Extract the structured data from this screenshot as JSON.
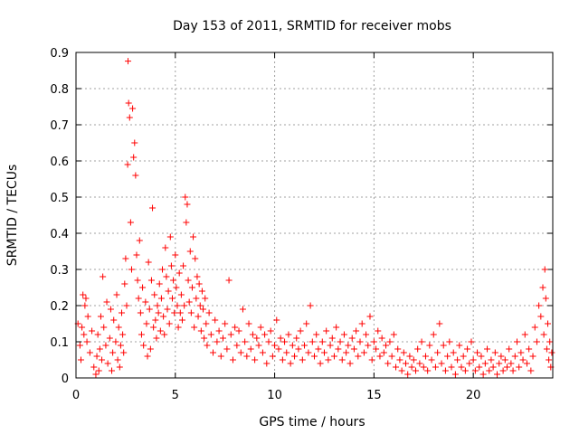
{
  "chart_data": {
    "type": "scatter",
    "title": "Day 153 of 2011, SRMTID for receiver mobs",
    "xlabel": "GPS time / hours",
    "ylabel": "SRMTID / TECUs",
    "xlim": [
      0,
      24
    ],
    "ylim": [
      0,
      0.9
    ],
    "xticks": [
      0,
      5,
      10,
      15,
      20
    ],
    "xtick_labels": [
      "0",
      "5",
      "10",
      "15",
      "20"
    ],
    "yticks": [
      0,
      0.1,
      0.2,
      0.3,
      0.4,
      0.5,
      0.6,
      0.7,
      0.8,
      0.9
    ],
    "ytick_labels": [
      "0",
      "0.1",
      "0.2",
      "0.3",
      "0.4",
      "0.5",
      "0.6",
      "0.7",
      "0.8",
      "0.9"
    ],
    "grid": true,
    "marker": "+",
    "color": "#ff0000",
    "series": [
      {
        "name": "mobs",
        "points": [
          [
            0.1,
            0.15
          ],
          [
            0.2,
            0.09
          ],
          [
            0.25,
            0.05
          ],
          [
            0.3,
            0.14
          ],
          [
            0.35,
            0.23
          ],
          [
            0.4,
            0.12
          ],
          [
            0.45,
            0.2
          ],
          [
            0.5,
            0.22
          ],
          [
            0.55,
            0.1
          ],
          [
            0.6,
            0.17
          ],
          [
            0.7,
            0.07
          ],
          [
            0.8,
            0.13
          ],
          [
            0.9,
            0.03
          ],
          [
            1.0,
            0.01
          ],
          [
            1.05,
            0.06
          ],
          [
            1.1,
            0.12
          ],
          [
            1.15,
            0.02
          ],
          [
            1.2,
            0.08
          ],
          [
            1.25,
            0.17
          ],
          [
            1.3,
            0.05
          ],
          [
            1.35,
            0.28
          ],
          [
            1.4,
            0.14
          ],
          [
            1.5,
            0.09
          ],
          [
            1.55,
            0.21
          ],
          [
            1.6,
            0.04
          ],
          [
            1.7,
            0.11
          ],
          [
            1.75,
            0.19
          ],
          [
            1.8,
            0.02
          ],
          [
            1.85,
            0.07
          ],
          [
            1.9,
            0.16
          ],
          [
            2.0,
            0.1
          ],
          [
            2.05,
            0.23
          ],
          [
            2.1,
            0.05
          ],
          [
            2.15,
            0.14
          ],
          [
            2.2,
            0.03
          ],
          [
            2.25,
            0.09
          ],
          [
            2.3,
            0.18
          ],
          [
            2.35,
            0.12
          ],
          [
            2.4,
            0.07
          ],
          [
            2.45,
            0.26
          ],
          [
            2.5,
            0.33
          ],
          [
            2.55,
            0.2
          ],
          [
            2.6,
            0.59
          ],
          [
            2.62,
            0.876
          ],
          [
            2.65,
            0.76
          ],
          [
            2.7,
            0.72
          ],
          [
            2.75,
            0.43
          ],
          [
            2.8,
            0.3
          ],
          [
            2.85,
            0.745
          ],
          [
            2.9,
            0.61
          ],
          [
            2.95,
            0.65
          ],
          [
            3.0,
            0.56
          ],
          [
            3.05,
            0.34
          ],
          [
            3.1,
            0.27
          ],
          [
            3.15,
            0.22
          ],
          [
            3.2,
            0.38
          ],
          [
            3.25,
            0.18
          ],
          [
            3.3,
            0.12
          ],
          [
            3.35,
            0.25
          ],
          [
            3.4,
            0.09
          ],
          [
            3.5,
            0.21
          ],
          [
            3.55,
            0.15
          ],
          [
            3.6,
            0.06
          ],
          [
            3.65,
            0.32
          ],
          [
            3.7,
            0.19
          ],
          [
            3.75,
            0.08
          ],
          [
            3.8,
            0.27
          ],
          [
            3.85,
            0.47
          ],
          [
            3.9,
            0.14
          ],
          [
            3.95,
            0.23
          ],
          [
            4.0,
            0.16
          ],
          [
            4.05,
            0.11
          ],
          [
            4.1,
            0.2
          ],
          [
            4.15,
            0.18
          ],
          [
            4.2,
            0.26
          ],
          [
            4.25,
            0.13
          ],
          [
            4.3,
            0.22
          ],
          [
            4.35,
            0.3
          ],
          [
            4.4,
            0.17
          ],
          [
            4.45,
            0.12
          ],
          [
            4.5,
            0.36
          ],
          [
            4.55,
            0.28
          ],
          [
            4.6,
            0.19
          ],
          [
            4.65,
            0.24
          ],
          [
            4.7,
            0.15
          ],
          [
            4.75,
            0.39
          ],
          [
            4.8,
            0.31
          ],
          [
            4.85,
            0.22
          ],
          [
            4.9,
            0.27
          ],
          [
            4.95,
            0.18
          ],
          [
            5.0,
            0.34
          ],
          [
            5.05,
            0.25
          ],
          [
            5.1,
            0.2
          ],
          [
            5.15,
            0.14
          ],
          [
            5.2,
            0.29
          ],
          [
            5.25,
            0.18
          ],
          [
            5.3,
            0.23
          ],
          [
            5.35,
            0.16
          ],
          [
            5.4,
            0.31
          ],
          [
            5.45,
            0.2
          ],
          [
            5.5,
            0.5
          ],
          [
            5.55,
            0.43
          ],
          [
            5.6,
            0.48
          ],
          [
            5.65,
            0.27
          ],
          [
            5.7,
            0.21
          ],
          [
            5.75,
            0.35
          ],
          [
            5.8,
            0.18
          ],
          [
            5.85,
            0.25
          ],
          [
            5.9,
            0.39
          ],
          [
            5.95,
            0.14
          ],
          [
            6.0,
            0.33
          ],
          [
            6.05,
            0.22
          ],
          [
            6.1,
            0.28
          ],
          [
            6.15,
            0.17
          ],
          [
            6.2,
            0.26
          ],
          [
            6.25,
            0.2
          ],
          [
            6.3,
            0.13
          ],
          [
            6.35,
            0.24
          ],
          [
            6.4,
            0.19
          ],
          [
            6.45,
            0.11
          ],
          [
            6.5,
            0.22
          ],
          [
            6.55,
            0.15
          ],
          [
            6.6,
            0.09
          ],
          [
            6.7,
            0.18
          ],
          [
            6.8,
            0.12
          ],
          [
            6.9,
            0.07
          ],
          [
            7.0,
            0.16
          ],
          [
            7.1,
            0.1
          ],
          [
            7.2,
            0.13
          ],
          [
            7.3,
            0.06
          ],
          [
            7.4,
            0.11
          ],
          [
            7.5,
            0.15
          ],
          [
            7.6,
            0.08
          ],
          [
            7.7,
            0.27
          ],
          [
            7.8,
            0.12
          ],
          [
            7.9,
            0.05
          ],
          [
            8.0,
            0.14
          ],
          [
            8.1,
            0.09
          ],
          [
            8.2,
            0.13
          ],
          [
            8.3,
            0.07
          ],
          [
            8.4,
            0.19
          ],
          [
            8.5,
            0.1
          ],
          [
            8.6,
            0.06
          ],
          [
            8.7,
            0.15
          ],
          [
            8.8,
            0.08
          ],
          [
            8.9,
            0.12
          ],
          [
            9.0,
            0.05
          ],
          [
            9.1,
            0.11
          ],
          [
            9.2,
            0.09
          ],
          [
            9.3,
            0.14
          ],
          [
            9.4,
            0.07
          ],
          [
            9.5,
            0.12
          ],
          [
            9.6,
            0.04
          ],
          [
            9.7,
            0.1
          ],
          [
            9.8,
            0.13
          ],
          [
            9.9,
            0.06
          ],
          [
            10.0,
            0.09
          ],
          [
            10.1,
            0.16
          ],
          [
            10.2,
            0.08
          ],
          [
            10.3,
            0.11
          ],
          [
            10.4,
            0.05
          ],
          [
            10.5,
            0.1
          ],
          [
            10.6,
            0.07
          ],
          [
            10.7,
            0.12
          ],
          [
            10.8,
            0.04
          ],
          [
            10.9,
            0.09
          ],
          [
            11.0,
            0.06
          ],
          [
            11.1,
            0.11
          ],
          [
            11.2,
            0.08
          ],
          [
            11.3,
            0.13
          ],
          [
            11.4,
            0.05
          ],
          [
            11.5,
            0.09
          ],
          [
            11.6,
            0.15
          ],
          [
            11.7,
            0.07
          ],
          [
            11.8,
            0.2
          ],
          [
            11.9,
            0.1
          ],
          [
            12.0,
            0.06
          ],
          [
            12.1,
            0.12
          ],
          [
            12.2,
            0.08
          ],
          [
            12.3,
            0.04
          ],
          [
            12.4,
            0.1
          ],
          [
            12.5,
            0.07
          ],
          [
            12.6,
            0.13
          ],
          [
            12.7,
            0.05
          ],
          [
            12.8,
            0.09
          ],
          [
            12.9,
            0.11
          ],
          [
            13.0,
            0.06
          ],
          [
            13.1,
            0.14
          ],
          [
            13.2,
            0.08
          ],
          [
            13.3,
            0.1
          ],
          [
            13.4,
            0.05
          ],
          [
            13.5,
            0.12
          ],
          [
            13.6,
            0.07
          ],
          [
            13.7,
            0.09
          ],
          [
            13.8,
            0.04
          ],
          [
            13.9,
            0.11
          ],
          [
            14.0,
            0.08
          ],
          [
            14.1,
            0.13
          ],
          [
            14.2,
            0.06
          ],
          [
            14.3,
            0.1
          ],
          [
            14.4,
            0.15
          ],
          [
            14.5,
            0.07
          ],
          [
            14.6,
            0.12
          ],
          [
            14.7,
            0.09
          ],
          [
            14.8,
            0.17
          ],
          [
            14.9,
            0.05
          ],
          [
            15.0,
            0.1
          ],
          [
            15.1,
            0.08
          ],
          [
            15.2,
            0.13
          ],
          [
            15.3,
            0.06
          ],
          [
            15.4,
            0.11
          ],
          [
            15.5,
            0.07
          ],
          [
            15.6,
            0.09
          ],
          [
            15.7,
            0.04
          ],
          [
            15.8,
            0.1
          ],
          [
            15.9,
            0.06
          ],
          [
            16.0,
            0.12
          ],
          [
            16.1,
            0.03
          ],
          [
            16.2,
            0.08
          ],
          [
            16.3,
            0.05
          ],
          [
            16.4,
            0.02
          ],
          [
            16.5,
            0.07
          ],
          [
            16.6,
            0.04
          ],
          [
            16.7,
            0.01
          ],
          [
            16.8,
            0.06
          ],
          [
            16.9,
            0.03
          ],
          [
            17.0,
            0.05
          ],
          [
            17.1,
            0.02
          ],
          [
            17.2,
            0.08
          ],
          [
            17.3,
            0.04
          ],
          [
            17.4,
            0.1
          ],
          [
            17.5,
            0.03
          ],
          [
            17.6,
            0.06
          ],
          [
            17.7,
            0.02
          ],
          [
            17.8,
            0.09
          ],
          [
            17.9,
            0.05
          ],
          [
            18.0,
            0.12
          ],
          [
            18.1,
            0.03
          ],
          [
            18.2,
            0.07
          ],
          [
            18.3,
            0.15
          ],
          [
            18.4,
            0.04
          ],
          [
            18.5,
            0.09
          ],
          [
            18.6,
            0.02
          ],
          [
            18.7,
            0.06
          ],
          [
            18.8,
            0.1
          ],
          [
            18.9,
            0.03
          ],
          [
            19.0,
            0.07
          ],
          [
            19.1,
            0.01
          ],
          [
            19.2,
            0.05
          ],
          [
            19.3,
            0.09
          ],
          [
            19.4,
            0.03
          ],
          [
            19.5,
            0.06
          ],
          [
            19.6,
            0.02
          ],
          [
            19.7,
            0.08
          ],
          [
            19.8,
            0.04
          ],
          [
            19.9,
            0.1
          ],
          [
            20.0,
            0.05
          ],
          [
            20.1,
            0.02
          ],
          [
            20.2,
            0.07
          ],
          [
            20.3,
            0.03
          ],
          [
            20.4,
            0.06
          ],
          [
            20.5,
            0.01
          ],
          [
            20.6,
            0.04
          ],
          [
            20.7,
            0.08
          ],
          [
            20.8,
            0.02
          ],
          [
            20.9,
            0.05
          ],
          [
            21.0,
            0.03
          ],
          [
            21.1,
            0.07
          ],
          [
            21.2,
            0.01
          ],
          [
            21.3,
            0.04
          ],
          [
            21.4,
            0.06
          ],
          [
            21.5,
            0.02
          ],
          [
            21.6,
            0.05
          ],
          [
            21.7,
            0.03
          ],
          [
            21.8,
            0.08
          ],
          [
            21.9,
            0.04
          ],
          [
            22.0,
            0.02
          ],
          [
            22.1,
            0.06
          ],
          [
            22.2,
            0.1
          ],
          [
            22.3,
            0.03
          ],
          [
            22.4,
            0.07
          ],
          [
            22.5,
            0.05
          ],
          [
            22.6,
            0.12
          ],
          [
            22.7,
            0.04
          ],
          [
            22.8,
            0.08
          ],
          [
            22.9,
            0.02
          ],
          [
            23.0,
            0.06
          ],
          [
            23.1,
            0.14
          ],
          [
            23.2,
            0.1
          ],
          [
            23.3,
            0.2
          ],
          [
            23.4,
            0.17
          ],
          [
            23.5,
            0.25
          ],
          [
            23.55,
            0.12
          ],
          [
            23.6,
            0.3
          ],
          [
            23.65,
            0.22
          ],
          [
            23.7,
            0.08
          ],
          [
            23.75,
            0.15
          ],
          [
            23.8,
            0.05
          ],
          [
            23.85,
            0.1
          ],
          [
            23.9,
            0.03
          ],
          [
            23.95,
            0.07
          ]
        ]
      }
    ]
  }
}
